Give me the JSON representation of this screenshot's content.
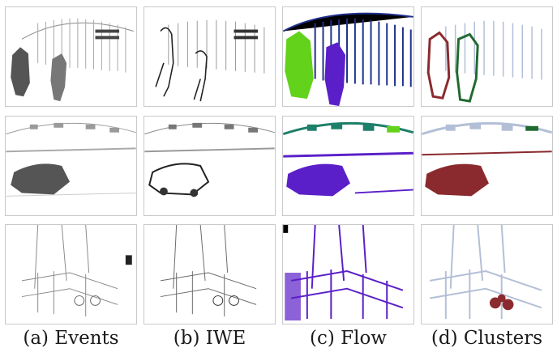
{
  "captions": {
    "events": "(a) Events",
    "iwe": "(b) IWE",
    "flow": "(c) Flow",
    "clusters": "(d) Clusters"
  },
  "colors": {
    "events_ink": "#6b6b6b",
    "iwe_ink": "#2b2b2b",
    "flow_violet": "#5a1fc8",
    "flow_blue": "#1f2f8a",
    "flow_green": "#62d21a",
    "flow_teal": "#1e7f6a",
    "cluster_grey": "#b3bfd6",
    "cluster_red": "#8a2a2e",
    "cluster_green": "#1f6a2f"
  }
}
